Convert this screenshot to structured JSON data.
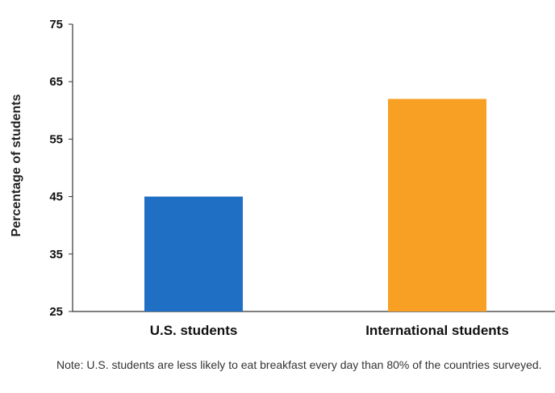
{
  "chart_data": {
    "type": "bar",
    "title": "",
    "xlabel": "",
    "ylabel": "Percentage of students",
    "categories": [
      "U.S. students",
      "International students"
    ],
    "values": [
      45,
      62
    ],
    "ylim": [
      25,
      75
    ],
    "yticks": [
      "25",
      "35",
      "45",
      "55",
      "65",
      "75"
    ],
    "bar_colors": [
      "#1f6fc4",
      "#f7a023"
    ],
    "grid": false,
    "legend": "none"
  },
  "note": "Note: U.S. students are less likely to eat breakfast every day than 80% of the countries surveyed."
}
